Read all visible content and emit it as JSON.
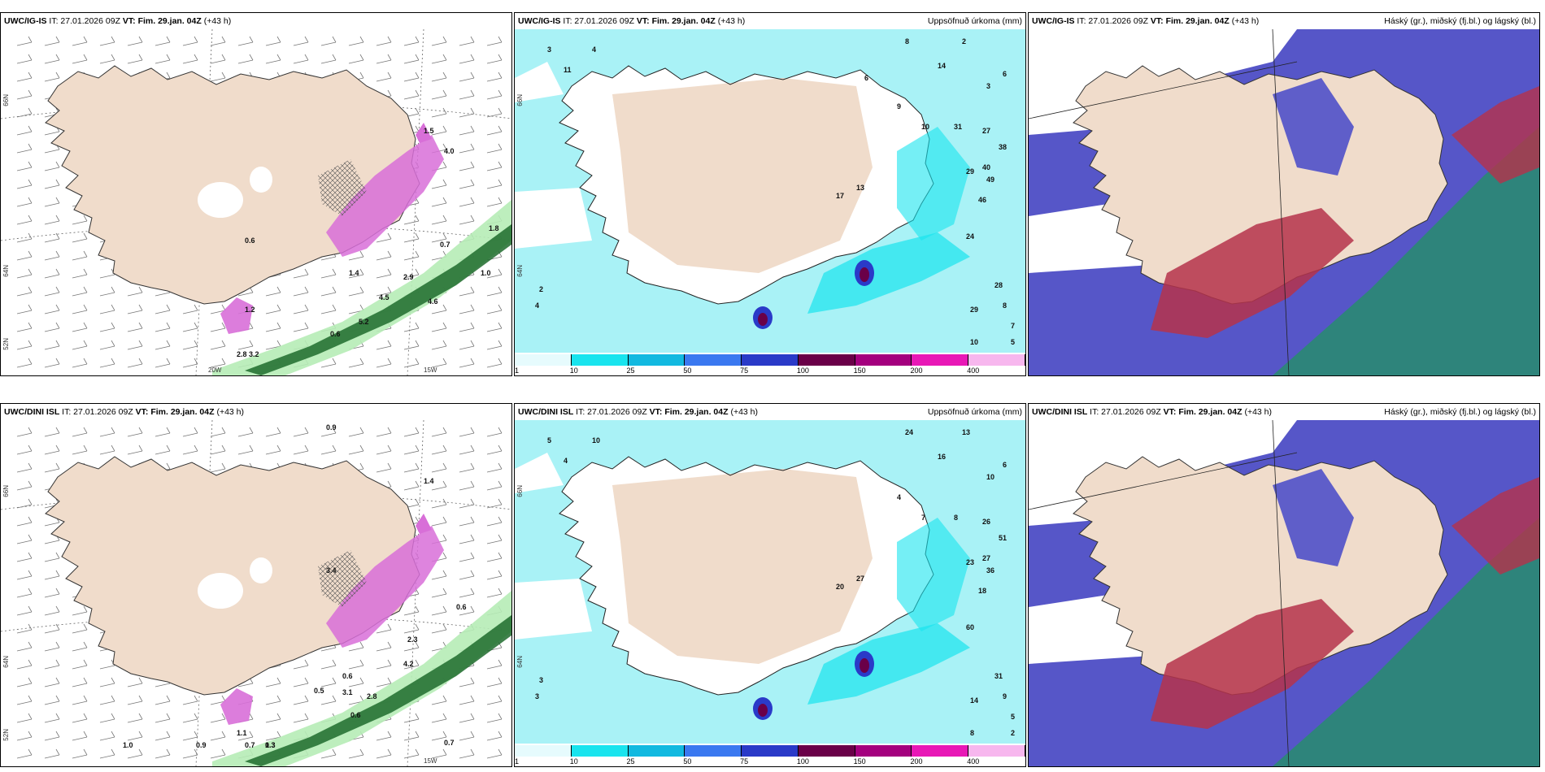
{
  "colors": {
    "land": "#f0dccb",
    "sea_light": "#a9f2f6",
    "sea_cyan": "#19e4ee",
    "snow_pink": "#d86fd8",
    "green_dark": "#1e6b2d",
    "green_light": "#b6ecb6",
    "blue_cloud": "#5656c8",
    "red_cloud": "#b5324b",
    "teal_cloud": "#2a8a72"
  },
  "panels": [
    {
      "model": "UWC/IG-IS",
      "it_label": "IT: 27.01.2026 09Z",
      "vt_label": "VT: Fim. 29.jan. 04Z",
      "lead": "(+43 h)",
      "title": "",
      "type": "wind",
      "lat_labels": [
        "66N",
        "64N",
        "52N"
      ],
      "lon_labels": [
        "20W",
        "15W"
      ],
      "values": [
        "0.6",
        "1.5",
        "2.9",
        "4.5",
        "4.6",
        "5.2",
        "0.7",
        "0.6",
        "1.8",
        "2.8",
        "3.2",
        "4.0",
        "1.4",
        "1.2",
        "1.0"
      ]
    },
    {
      "model": "UWC/IG-IS",
      "it_label": "IT: 27.01.2026 09Z",
      "vt_label": "VT: Fim. 29.jan. 04Z",
      "lead": "(+43 h)",
      "title": "Uppsöfnuð úrkoma (mm)",
      "type": "precip",
      "lat_labels": [
        "66N",
        "64N"
      ],
      "lon_labels": [],
      "values": [
        "4",
        "11",
        "3",
        "2",
        "8",
        "14",
        "10",
        "31",
        "27",
        "38",
        "40",
        "29",
        "49",
        "46",
        "24",
        "17",
        "13",
        "28",
        "29",
        "10",
        "8",
        "5",
        "7",
        "6",
        "3",
        "2",
        "4",
        "9",
        "6"
      ]
    },
    {
      "model": "UWC/IG-IS",
      "it_label": "IT: 27.01.2026 09Z",
      "vt_label": "VT: Fim. 29.jan. 04Z",
      "lead": "(+43 h)",
      "title": "Háský (gr.), miðský (fj.bl.) og lágský (bl.)",
      "type": "cloud",
      "lat_labels": [],
      "lon_labels": [],
      "values": []
    },
    {
      "model": "UWC/DINI ISL",
      "it_label": "IT: 27.01.2026 09Z",
      "vt_label": "VT: Fim. 29.jan. 04Z",
      "lead": "(+43 h)",
      "title": "",
      "type": "wind",
      "lat_labels": [
        "66N",
        "64N",
        "52N"
      ],
      "lon_labels": [
        "15W"
      ],
      "values": [
        "0.9",
        "1.4",
        "3.4",
        "0.6",
        "2.3",
        "4.2",
        "0.6",
        "3.1",
        "0.5",
        "2.8",
        "0.6",
        "1.0",
        "0.9",
        "0.7",
        "0.7",
        "1.3",
        "1.1",
        "0.3"
      ]
    },
    {
      "model": "UWC/DINI ISL",
      "it_label": "IT: 27.01.2026 09Z",
      "vt_label": "VT: Fim. 29.jan. 04Z",
      "lead": "(+43 h)",
      "title": "Uppsöfnuð úrkoma (mm)",
      "type": "precip",
      "lat_labels": [
        "66N",
        "64N"
      ],
      "lon_labels": [],
      "values": [
        "10",
        "4",
        "5",
        "3",
        "24",
        "16",
        "7",
        "8",
        "26",
        "51",
        "27",
        "23",
        "36",
        "18",
        "60",
        "20",
        "27",
        "31",
        "14",
        "8",
        "9",
        "2",
        "5",
        "6",
        "10",
        "13",
        "3",
        "4"
      ]
    },
    {
      "model": "UWC/DINI ISL",
      "it_label": "IT: 27.01.2026 09Z",
      "vt_label": "VT: Fim. 29.jan. 04Z",
      "lead": "(+43 h)",
      "title": "Háský (gr.), miðský (fj.bl.) og lágský (bl.)",
      "type": "cloud",
      "lat_labels": [],
      "lon_labels": [],
      "values": []
    }
  ],
  "colorbar": {
    "ticks": [
      "1",
      "10",
      "25",
      "50",
      "75",
      "100",
      "150",
      "200",
      "400"
    ],
    "colors": [
      "#e6fbfd",
      "#19e4ee",
      "#12b9e0",
      "#3a78f0",
      "#2a3ac8",
      "#6a0048",
      "#a4007e",
      "#e818b6",
      "#f7b7ee"
    ]
  }
}
